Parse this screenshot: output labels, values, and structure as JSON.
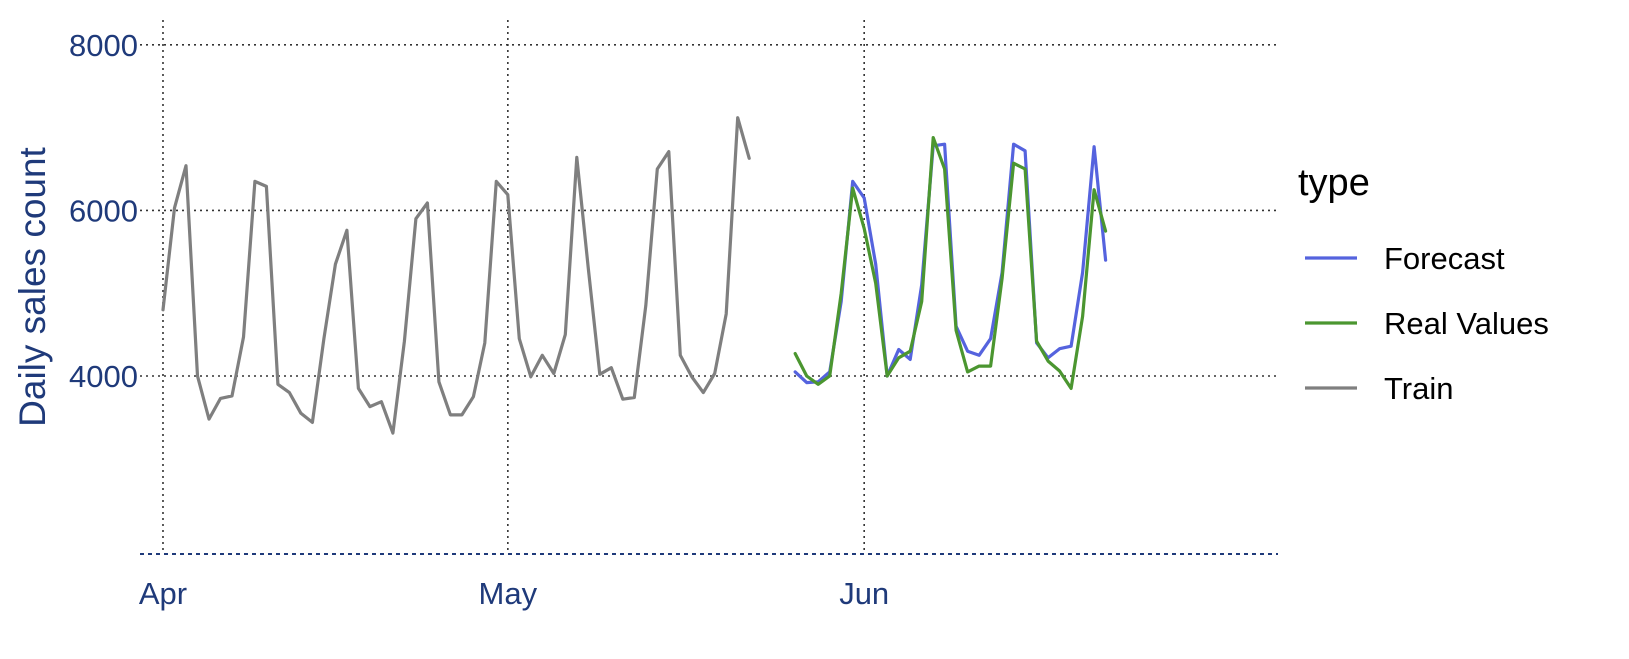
{
  "chart_data": {
    "type": "line",
    "xlabel": "",
    "ylabel": "Daily sales count",
    "x_ticks": [
      {
        "date": "2023-04-01",
        "label": "Apr"
      },
      {
        "date": "2023-05-01",
        "label": "May"
      },
      {
        "date": "2023-06-01",
        "label": "Jun"
      }
    ],
    "y_ticks": [
      4000,
      6000,
      8000
    ],
    "xlim": [
      "2023-03-30",
      "2023-07-07"
    ],
    "ylim": [
      1850,
      8300
    ],
    "grid": true,
    "legend": {
      "title": "type",
      "placement": "right"
    },
    "colors": {
      "Forecast": "#5563de",
      "Real Values": "#4b9630",
      "Train": "#7f7f7f",
      "axis_text": "#1f3a7a"
    },
    "series": [
      {
        "name": "Forecast",
        "start": "2023-05-26",
        "values": [
          4050,
          3920,
          3930,
          4050,
          4900,
          6350,
          6150,
          5350,
          4000,
          4320,
          4200,
          5100,
          6780,
          6800,
          4600,
          4300,
          4250,
          4450,
          5250,
          6800,
          6720,
          4400,
          4220,
          4330,
          4360,
          5250,
          6770,
          5400
        ]
      },
      {
        "name": "Real Values",
        "start": "2023-05-26",
        "values": [
          4270,
          4000,
          3900,
          4000,
          5000,
          6270,
          5780,
          5120,
          4000,
          4220,
          4300,
          4900,
          6880,
          6500,
          4550,
          4050,
          4120,
          4120,
          5180,
          6570,
          6500,
          4420,
          4180,
          4060,
          3850,
          4720,
          6250,
          5750
        ]
      },
      {
        "name": "Train",
        "start": "2023-04-01",
        "values": [
          4800,
          6030,
          6540,
          4000,
          3480,
          3730,
          3760,
          4470,
          6350,
          6290,
          3900,
          3800,
          3550,
          3440,
          4450,
          5350,
          5760,
          3850,
          3630,
          3690,
          3310,
          4420,
          5900,
          6090,
          3930,
          3530,
          3530,
          3750,
          4400,
          6350,
          6190,
          4450,
          3990,
          4250,
          4030,
          4500,
          6640,
          5300,
          4020,
          4100,
          3720,
          3740,
          4850,
          6500,
          6710,
          4250,
          3990,
          3800,
          4030,
          4750,
          7120,
          6630
        ]
      }
    ]
  }
}
